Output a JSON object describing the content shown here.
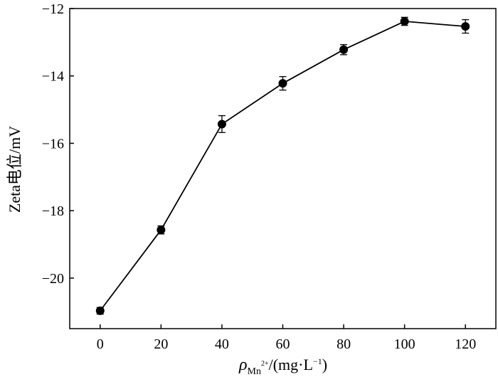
{
  "chart_data": {
    "type": "line",
    "title": "",
    "xlabel": {
      "symbol": "ρ",
      "subscript": "Mn",
      "superscript": "2+",
      "unit_prefix": "/(mg·L",
      "unit_superscript": "−1",
      "unit_suffix": ")"
    },
    "ylabel": "Zeta电位/mV",
    "xlim": [
      -10,
      130
    ],
    "ylim": [
      -21.5,
      -12
    ],
    "xticks": [
      0,
      20,
      40,
      60,
      80,
      100,
      120
    ],
    "yticks": [
      -20,
      -18,
      -16,
      -14,
      -12
    ],
    "xtick_labels": [
      "0",
      "20",
      "40",
      "60",
      "80",
      "100",
      "120"
    ],
    "ytick_labels": [
      "−20",
      "−18",
      "−16",
      "−14",
      "−12"
    ],
    "grid": false,
    "legend": "none",
    "series": [
      {
        "x": [
          0,
          20,
          40,
          60,
          80,
          100,
          120
        ],
        "y": [
          -20.97,
          -18.57,
          -15.43,
          -14.22,
          -13.22,
          -12.38,
          -12.53
        ],
        "error": [
          0.1,
          0.12,
          0.25,
          0.2,
          0.15,
          0.12,
          0.2
        ],
        "color": "#000000",
        "marker": "circle"
      }
    ]
  }
}
